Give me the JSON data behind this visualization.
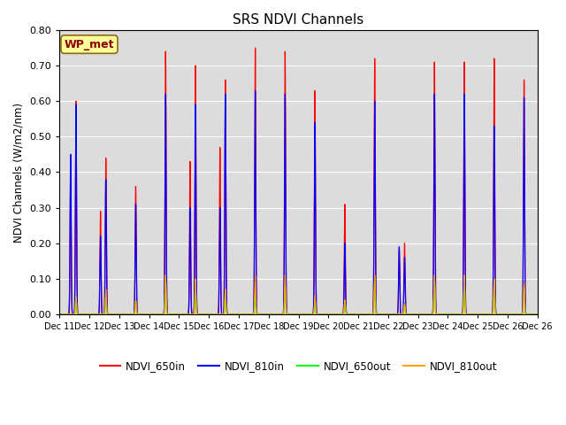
{
  "title": "SRS NDVI Channels",
  "ylabel": "NDVI Channels (W/m2/nm)",
  "ylim": [
    0.0,
    0.8
  ],
  "yticks": [
    0.0,
    0.1,
    0.2,
    0.3,
    0.4,
    0.5,
    0.6,
    0.7,
    0.8
  ],
  "bg_color": "#dcdcdc",
  "annotation_text": "WP_met",
  "annotation_color": "#8b0000",
  "annotation_bg": "#ffff99",
  "day_labels": [
    "Dec 11",
    "Dec 12",
    "Dec 13",
    "Dec 14",
    "Dec 15",
    "Dec 16",
    "Dec 17",
    "Dec 18",
    "Dec 19",
    "Dec 20",
    "Dec 21",
    "Dec 22",
    "Dec 23",
    "Dec 24",
    "Dec 25",
    "Dec 26"
  ],
  "peaks_650in": [
    0.6,
    0.44,
    0.36,
    0.74,
    0.7,
    0.66,
    0.75,
    0.74,
    0.63,
    0.31,
    0.72,
    0.2,
    0.71,
    0.71,
    0.72,
    0.66
  ],
  "peaks_810in": [
    0.59,
    0.38,
    0.31,
    0.62,
    0.59,
    0.62,
    0.63,
    0.62,
    0.54,
    0.2,
    0.6,
    0.16,
    0.62,
    0.62,
    0.53,
    0.61
  ],
  "peaks_650out": [
    0.05,
    0.05,
    0.04,
    0.1,
    0.07,
    0.06,
    0.05,
    0.08,
    0.04,
    0.04,
    0.1,
    0.03,
    0.1,
    0.1,
    0.1,
    0.08
  ],
  "peaks_810out": [
    0.05,
    0.07,
    0.04,
    0.11,
    0.1,
    0.07,
    0.11,
    0.11,
    0.05,
    0.04,
    0.11,
    0.03,
    0.11,
    0.11,
    0.1,
    0.09
  ],
  "sub_peaks_650in": [
    0.39,
    0.29,
    0.0,
    0.0,
    0.43,
    0.47,
    0.0,
    0.0,
    0.0,
    0.0,
    0.0,
    0.18,
    0.0,
    0.0,
    0.0,
    0.0
  ],
  "sub_peaks_810in": [
    0.45,
    0.22,
    0.0,
    0.0,
    0.3,
    0.3,
    0.0,
    0.0,
    0.0,
    0.0,
    0.0,
    0.19,
    0.0,
    0.0,
    0.0,
    0.0
  ],
  "sub_peaks_650out": [
    0.0,
    0.0,
    0.0,
    0.0,
    0.0,
    0.0,
    0.0,
    0.0,
    0.0,
    0.0,
    0.0,
    0.0,
    0.0,
    0.0,
    0.0,
    0.0
  ],
  "sub_peaks_810out": [
    0.0,
    0.0,
    0.0,
    0.0,
    0.0,
    0.0,
    0.0,
    0.0,
    0.0,
    0.0,
    0.0,
    0.0,
    0.0,
    0.0,
    0.0,
    0.0
  ]
}
